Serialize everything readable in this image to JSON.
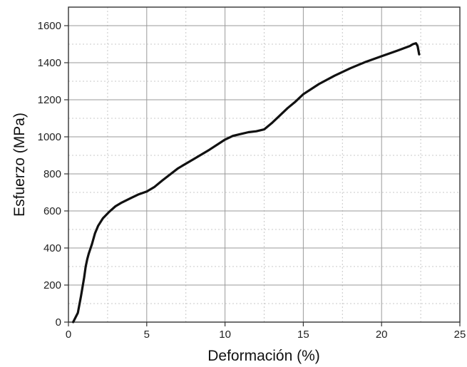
{
  "chart_data": {
    "type": "line",
    "title": "",
    "xlabel": "Deformación (%)",
    "ylabel": "Esfuerzo (MPa)",
    "xlim": [
      0,
      25
    ],
    "ylim": [
      0,
      1700
    ],
    "xticks": [
      0,
      5,
      10,
      15,
      20,
      25
    ],
    "yticks": [
      0,
      200,
      400,
      600,
      800,
      1000,
      1200,
      1400,
      1600
    ],
    "xtick_labels": [
      "0",
      "5",
      "10",
      "15",
      "20",
      "25"
    ],
    "ytick_labels": [
      "0",
      "200",
      "400",
      "600",
      "800",
      "1000",
      "1200",
      "1400",
      "1600"
    ],
    "grid": true,
    "legend": "none",
    "series": [
      {
        "color": "#111111",
        "x": [
          0.3,
          0.45,
          0.6,
          0.8,
          1.0,
          1.1,
          1.2,
          1.3,
          1.5,
          1.7,
          1.9,
          2.2,
          2.6,
          3.0,
          3.4,
          4.0,
          4.5,
          5.0,
          5.5,
          6.0,
          7.0,
          8.0,
          9.0,
          10.0,
          10.5,
          11.0,
          11.5,
          12.0,
          12.5,
          13.0,
          13.5,
          14.0,
          14.5,
          15.0,
          16.0,
          17.0,
          18.0,
          19.0,
          20.0,
          21.0,
          21.8,
          22.0,
          22.2,
          22.3,
          22.4
        ],
        "y": [
          0,
          25,
          50,
          140,
          240,
          300,
          340,
          370,
          420,
          480,
          520,
          560,
          595,
          625,
          645,
          670,
          690,
          705,
          730,
          765,
          830,
          880,
          930,
          985,
          1005,
          1015,
          1025,
          1030,
          1040,
          1075,
          1115,
          1155,
          1190,
          1230,
          1285,
          1330,
          1370,
          1405,
          1435,
          1465,
          1490,
          1500,
          1505,
          1490,
          1445
        ]
      }
    ]
  }
}
